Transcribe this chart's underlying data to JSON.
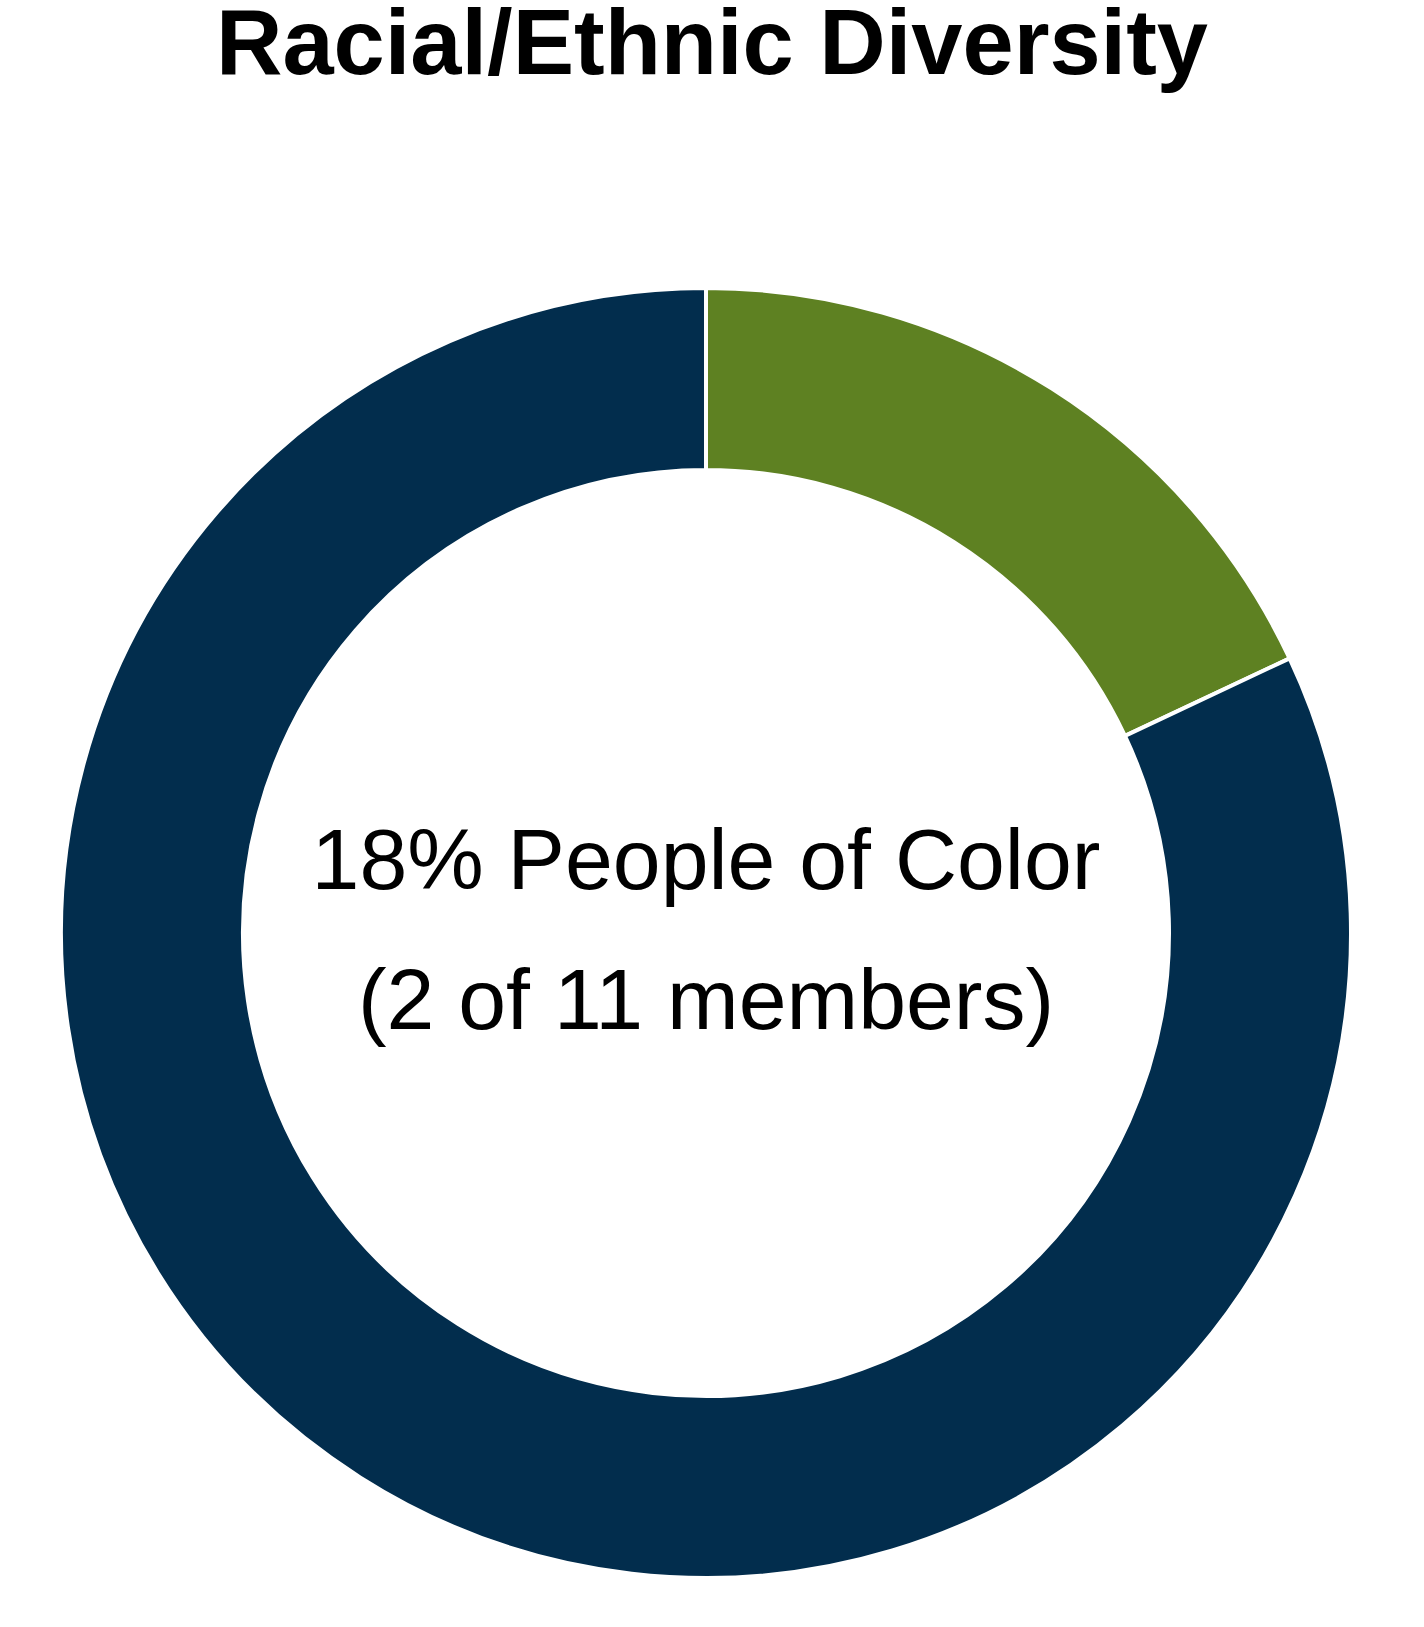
{
  "chart_data": {
    "type": "donut",
    "title": "Racial/Ethnic Diversity",
    "categories": [
      null,
      null
    ],
    "values": [
      18,
      82
    ],
    "colors": [
      "#5e8122",
      "#022d4d"
    ],
    "legend": false,
    "annotations": [
      "18% People of Color",
      "(2 of 11 members)"
    ]
  }
}
